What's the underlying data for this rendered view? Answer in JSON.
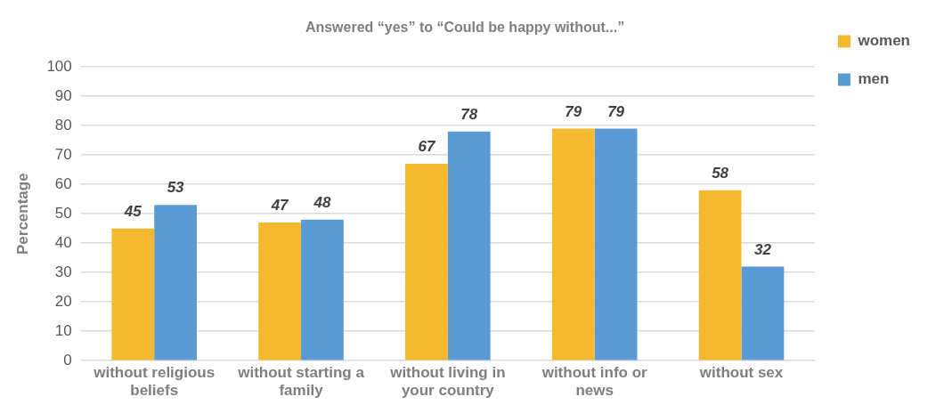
{
  "chart_data": {
    "type": "bar",
    "title": "Answered “yes” to “Could be happy without...”",
    "ylabel": "Percentage",
    "categories": [
      "without religious beliefs",
      "without starting a family",
      "without living in your country",
      "without info or news",
      "without sex"
    ],
    "series": [
      {
        "name": "women",
        "color": "#f4b92f",
        "values": [
          45,
          47,
          67,
          79,
          58
        ]
      },
      {
        "name": "men",
        "color": "#5b9bd5",
        "values": [
          53,
          48,
          78,
          79,
          32
        ]
      }
    ],
    "ylim": [
      0,
      100
    ],
    "yticks": [
      0,
      10,
      20,
      30,
      40,
      50,
      60,
      70,
      80,
      90,
      100
    ],
    "grid": "y",
    "legend": "right",
    "data_labels": true
  }
}
